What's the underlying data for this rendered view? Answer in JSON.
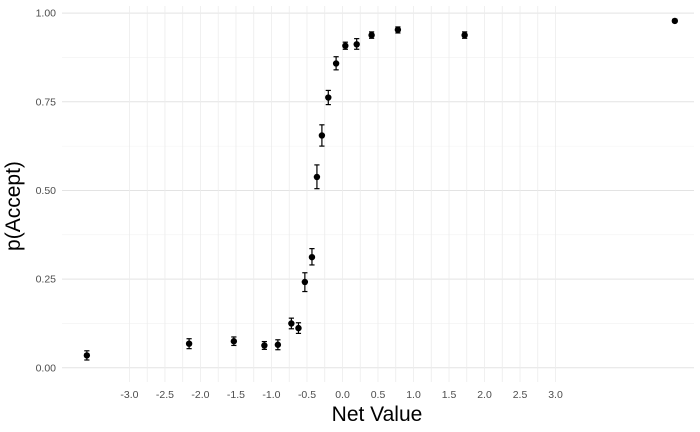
{
  "chart_data": {
    "type": "scatter",
    "title": "",
    "xlabel": "Net Value",
    "ylabel": "p(Accept)",
    "ylim": [
      -0.04,
      1.02
    ],
    "xlim": [
      -3.95,
      4.95
    ],
    "x_ticks": [
      -3.0,
      -2.75,
      -2.5,
      -2.25,
      -2.0,
      -1.75,
      -1.5,
      -1.25,
      -1.0,
      -0.75,
      -0.5,
      -0.25,
      0.0,
      0.25,
      0.5,
      0.75,
      1.0,
      1.25,
      1.5,
      1.75,
      2.0,
      2.25,
      2.5,
      2.75,
      3.0
    ],
    "x_tick_labels": [
      "-3.0",
      "",
      "-2.5",
      "",
      "-2.0",
      "",
      "-1.5",
      "",
      "-1.0",
      "",
      "-0.5",
      "",
      "0.0",
      "",
      "0.5",
      "",
      "1.0",
      "",
      "1.5",
      "",
      "2.0",
      "",
      "2.5",
      "",
      "3.0"
    ],
    "y_ticks": [
      0.0,
      0.25,
      0.5,
      0.75,
      1.0
    ],
    "y_tick_labels": [
      "0.00",
      "0.25",
      "0.50",
      "0.75",
      "1.00"
    ],
    "grid": true,
    "legend": "none",
    "points": [
      {
        "x": -3.6,
        "y": 0.035,
        "lo": 0.022,
        "hi": 0.048
      },
      {
        "x": -2.16,
        "y": 0.068,
        "lo": 0.054,
        "hi": 0.082
      },
      {
        "x": -1.53,
        "y": 0.075,
        "lo": 0.063,
        "hi": 0.087
      },
      {
        "x": -1.1,
        "y": 0.063,
        "lo": 0.052,
        "hi": 0.074
      },
      {
        "x": -0.91,
        "y": 0.065,
        "lo": 0.051,
        "hi": 0.079
      },
      {
        "x": -0.72,
        "y": 0.125,
        "lo": 0.11,
        "hi": 0.14
      },
      {
        "x": -0.62,
        "y": 0.112,
        "lo": 0.097,
        "hi": 0.127
      },
      {
        "x": -0.53,
        "y": 0.242,
        "lo": 0.215,
        "hi": 0.268
      },
      {
        "x": -0.43,
        "y": 0.312,
        "lo": 0.29,
        "hi": 0.336
      },
      {
        "x": -0.36,
        "y": 0.538,
        "lo": 0.505,
        "hi": 0.572
      },
      {
        "x": -0.29,
        "y": 0.655,
        "lo": 0.625,
        "hi": 0.685
      },
      {
        "x": -0.2,
        "y": 0.762,
        "lo": 0.742,
        "hi": 0.782
      },
      {
        "x": -0.09,
        "y": 0.858,
        "lo": 0.84,
        "hi": 0.877
      },
      {
        "x": 0.04,
        "y": 0.908,
        "lo": 0.898,
        "hi": 0.918
      },
      {
        "x": 0.2,
        "y": 0.912,
        "lo": 0.898,
        "hi": 0.928
      },
      {
        "x": 0.41,
        "y": 0.938,
        "lo": 0.929,
        "hi": 0.947
      },
      {
        "x": 0.78,
        "y": 0.953,
        "lo": 0.944,
        "hi": 0.961
      },
      {
        "x": 1.72,
        "y": 0.938,
        "lo": 0.929,
        "hi": 0.947
      },
      {
        "x": 4.68,
        "y": 0.978,
        "lo": 0.974,
        "hi": 0.982
      }
    ]
  }
}
